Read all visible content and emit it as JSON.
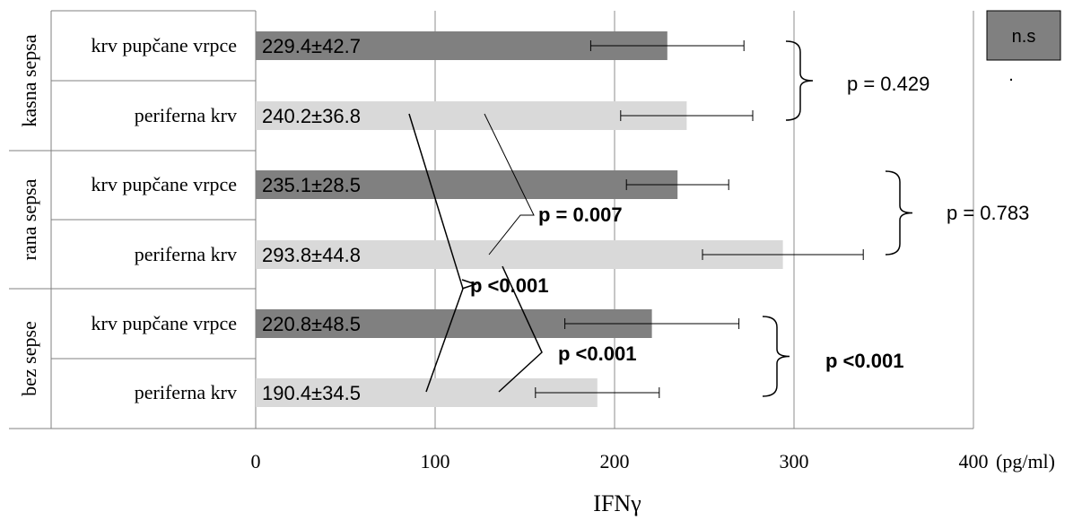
{
  "chart_data": {
    "type": "bar",
    "orientation": "horizontal",
    "xlabel": "IFNγ",
    "x_unit_label": "(pg/ml)",
    "xlim": [
      0,
      400
    ],
    "x_ticks": [
      "0",
      "100",
      "200",
      "300",
      "400"
    ],
    "grid": "vertical",
    "groups": [
      {
        "name": "kasna sepsa",
        "bars": [
          {
            "label": "krv pupčane vrpce",
            "value": 229.4,
            "error": 42.7,
            "value_label": "229.4±42.7",
            "color": "#808080"
          },
          {
            "label": "periferna krv",
            "value": 240.2,
            "error": 36.8,
            "value_label": "240.2±36.8",
            "color": "#d9d9d9"
          }
        ],
        "comparison": "p = 0.429",
        "comparison_bold": false
      },
      {
        "name": "rana sepsa",
        "bars": [
          {
            "label": "krv pupčane vrpce",
            "value": 235.1,
            "error": 28.5,
            "value_label": "235.1±28.5",
            "color": "#808080"
          },
          {
            "label": "periferna krv",
            "value": 293.8,
            "error": 44.8,
            "value_label": "293.8±44.8",
            "color": "#d9d9d9"
          }
        ],
        "comparison": "p = 0.783",
        "comparison_bold": false
      },
      {
        "name": "bez sepse",
        "bars": [
          {
            "label": "krv pupčane vrpce",
            "value": 220.8,
            "error": 48.5,
            "value_label": "220.8±48.5",
            "color": "#808080"
          },
          {
            "label": "periferna krv",
            "value": 190.4,
            "error": 34.5,
            "value_label": "190.4±34.5",
            "color": "#d9d9d9"
          }
        ],
        "comparison": "p <0.001",
        "comparison_bold": true
      }
    ],
    "annotations": [
      {
        "text": "p = 0.007",
        "bold": true
      },
      {
        "text": "p <0.001",
        "bold": true
      },
      {
        "text": "p <0.001",
        "bold": true
      }
    ],
    "legend": {
      "text_line1": "n.s",
      "text_line2": ".",
      "color": "#808080",
      "placement": "top-right"
    }
  }
}
